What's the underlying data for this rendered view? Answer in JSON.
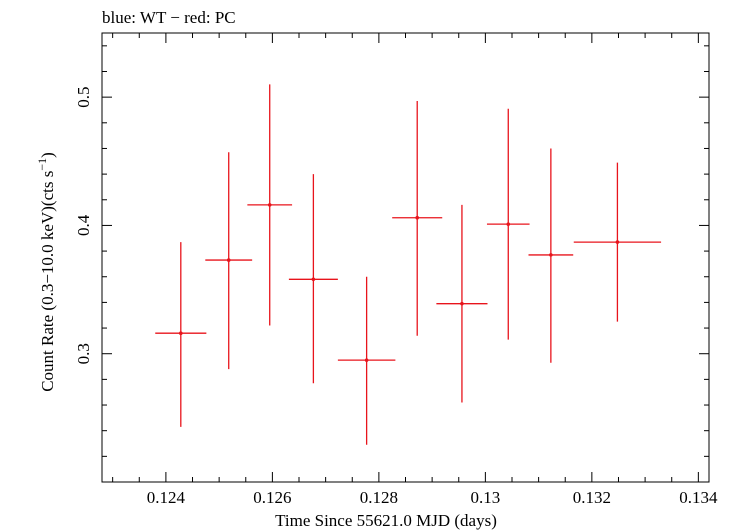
{
  "header": {
    "title": "blue: WT − red: PC"
  },
  "colors": {
    "series_pc": "#e8141c",
    "axes": "#000000",
    "background": "#ffffff"
  },
  "chart_data": {
    "type": "scatter",
    "title": "blue: WT − red: PC",
    "xlabel": "Time Since 55621.0 MJD (days)",
    "ylabel_main": "Count Rate (0.3−10.0 keV)(cts s",
    "ylabel_sup": "−1",
    "ylabel_close": ")",
    "xlim": [
      0.1228,
      0.1342
    ],
    "ylim": [
      0.2,
      0.55
    ],
    "x_ticks": [
      {
        "value": 0.124,
        "label": "0.124"
      },
      {
        "value": 0.126,
        "label": "0.126"
      },
      {
        "value": 0.128,
        "label": "0.128"
      },
      {
        "value": 0.13,
        "label": "0.13"
      },
      {
        "value": 0.132,
        "label": "0.132"
      },
      {
        "value": 0.134,
        "label": "0.134"
      }
    ],
    "y_ticks": [
      {
        "value": 0.3,
        "label": "0.3"
      },
      {
        "value": 0.4,
        "label": "0.4"
      },
      {
        "value": 0.5,
        "label": "0.5"
      }
    ],
    "grid": false,
    "series": [
      {
        "color": "#e8141c",
        "points": [
          {
            "x": 0.12428,
            "y": 0.316,
            "xerr": 0.00048,
            "yerr_low": 0.073,
            "yerr_high": 0.071
          },
          {
            "x": 0.12518,
            "y": 0.373,
            "xerr": 0.00044,
            "yerr_low": 0.085,
            "yerr_high": 0.084
          },
          {
            "x": 0.12595,
            "y": 0.416,
            "xerr": 0.00042,
            "yerr_low": 0.094,
            "yerr_high": 0.094
          },
          {
            "x": 0.12677,
            "y": 0.358,
            "xerr": 0.00046,
            "yerr_low": 0.081,
            "yerr_high": 0.082
          },
          {
            "x": 0.12777,
            "y": 0.295,
            "xerr": 0.00054,
            "yerr_low": 0.066,
            "yerr_high": 0.065
          },
          {
            "x": 0.12872,
            "y": 0.406,
            "xerr": 0.00047,
            "yerr_low": 0.092,
            "yerr_high": 0.091
          },
          {
            "x": 0.12956,
            "y": 0.339,
            "xerr": 0.00048,
            "yerr_low": 0.077,
            "yerr_high": 0.077
          },
          {
            "x": 0.13043,
            "y": 0.401,
            "xerr": 0.0004,
            "yerr_low": 0.09,
            "yerr_high": 0.09
          },
          {
            "x": 0.13123,
            "y": 0.377,
            "xerr": 0.00042,
            "yerr_low": 0.084,
            "yerr_high": 0.083
          },
          {
            "x": 0.13248,
            "y": 0.387,
            "xerr": 0.00082,
            "yerr_low": 0.062,
            "yerr_high": 0.062
          }
        ]
      }
    ]
  }
}
